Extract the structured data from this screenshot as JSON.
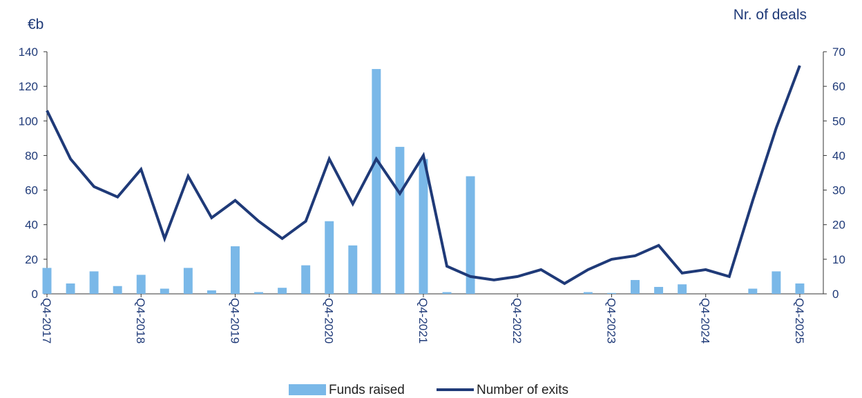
{
  "chart_data": {
    "type": "bar+line",
    "left_axis_unit": "€b",
    "right_axis_unit": "Nr. of deals",
    "categories": [
      "Q4-2017",
      "Q1-2018",
      "Q2-2018",
      "Q3-2018",
      "Q4-2018",
      "Q1-2019",
      "Q2-2019",
      "Q3-2019",
      "Q4-2019",
      "Q1-2020",
      "Q2-2020",
      "Q3-2020",
      "Q4-2020",
      "Q1-2021",
      "Q2-2021",
      "Q3-2021",
      "Q4-2021",
      "Q1-2022",
      "Q2-2022",
      "Q3-2022",
      "Q4-2022",
      "Q1-2023",
      "Q2-2023",
      "Q3-2023",
      "Q4-2023",
      "Q1-2024",
      "Q2-2024",
      "Q3-2024",
      "Q4-2024",
      "Q1-2025",
      "Q2-2025",
      "Q3-2025",
      "Q4-2025"
    ],
    "x_tick_labels": [
      "Q4-2017",
      "Q4-2018",
      "Q4-2019",
      "Q4-2020",
      "Q4-2021",
      "Q4-2022",
      "Q4-2023",
      "Q4-2024",
      "Q4-2025"
    ],
    "left_ylim": [
      0,
      140
    ],
    "left_yticks": [
      0,
      20,
      40,
      60,
      80,
      100,
      120,
      140
    ],
    "right_ylim": [
      0,
      70
    ],
    "right_yticks": [
      0,
      10,
      20,
      30,
      40,
      50,
      60,
      70
    ],
    "series": [
      {
        "name": "Funds raised",
        "type": "bar",
        "axis": "left",
        "color": "#7ab8e8",
        "values": [
          15,
          6,
          13,
          4.5,
          11,
          3,
          15,
          2,
          27.5,
          1,
          3.5,
          16.5,
          42,
          28,
          130,
          85,
          78,
          1,
          68,
          0,
          0,
          0,
          0,
          1,
          0.5,
          8,
          4,
          5.5,
          0,
          0,
          3,
          13,
          6
        ]
      },
      {
        "name": "Number of exits",
        "type": "line",
        "axis": "right",
        "color": "#1f3a78",
        "values": [
          53,
          39,
          31,
          28,
          36,
          16,
          34,
          22,
          27,
          21,
          16,
          21,
          39,
          26,
          39,
          29,
          40,
          8,
          5,
          4,
          5,
          7,
          3,
          7,
          10,
          11,
          14,
          6,
          7,
          5,
          27,
          48,
          66
        ]
      }
    ],
    "legend_position": "bottom",
    "grid": false
  }
}
